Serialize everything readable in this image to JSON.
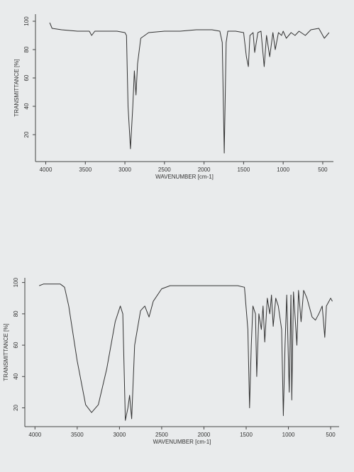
{
  "chart_data": [
    {
      "type": "line",
      "ylabel": "TRANSMITTANCE [%]",
      "xlabel": "WAVENUMBER [cm-1]",
      "xlim": [
        4130,
        365
      ],
      "ylim": [
        1,
        105
      ],
      "xticks": [
        4000,
        3500,
        3000,
        2500,
        2000,
        1500,
        1000,
        500
      ],
      "yticks": [
        20,
        40,
        60,
        80,
        100
      ],
      "color": "#333333",
      "x": [
        3950,
        3920,
        3800,
        3600,
        3450,
        3420,
        3380,
        3100,
        3000,
        2980,
        2960,
        2930,
        2900,
        2880,
        2860,
        2840,
        2800,
        2700,
        2500,
        2300,
        2100,
        1900,
        1800,
        1770,
        1745,
        1720,
        1700,
        1600,
        1500,
        1465,
        1440,
        1420,
        1380,
        1360,
        1320,
        1280,
        1240,
        1210,
        1170,
        1130,
        1100,
        1060,
        1020,
        1000,
        960,
        900,
        850,
        800,
        720,
        650,
        550,
        480,
        420
      ],
      "values": [
        99,
        95,
        94,
        93,
        93,
        90,
        93,
        93,
        92,
        90,
        40,
        10,
        40,
        65,
        48,
        70,
        88,
        92,
        93,
        93,
        94,
        94,
        93,
        85,
        7,
        85,
        93,
        93,
        92,
        75,
        68,
        90,
        92,
        78,
        92,
        93,
        68,
        90,
        75,
        92,
        80,
        92,
        90,
        93,
        88,
        92,
        90,
        93,
        90,
        94,
        95,
        88,
        92
      ]
    },
    {
      "type": "line",
      "ylabel": "TRANSMITTANCE [%]",
      "xlabel": "WAVENUMBER [cm-1]",
      "xlim": [
        4120,
        400
      ],
      "ylim": [
        8,
        103
      ],
      "xticks": [
        4000,
        3500,
        3000,
        2500,
        2000,
        1500,
        1000,
        500
      ],
      "yticks": [
        20,
        40,
        60,
        80,
        100
      ],
      "color": "#333333",
      "x": [
        3950,
        3900,
        3700,
        3650,
        3600,
        3500,
        3400,
        3330,
        3250,
        3150,
        3050,
        2990,
        2960,
        2930,
        2900,
        2880,
        2855,
        2820,
        2750,
        2700,
        2650,
        2600,
        2500,
        2400,
        2200,
        2000,
        1800,
        1600,
        1520,
        1480,
        1460,
        1440,
        1420,
        1390,
        1375,
        1350,
        1320,
        1300,
        1280,
        1250,
        1220,
        1200,
        1180,
        1150,
        1120,
        1080,
        1060,
        1040,
        1020,
        990,
        970,
        960,
        940,
        900,
        880,
        850,
        820,
        780,
        720,
        680,
        640,
        600,
        570,
        550,
        500,
        480
      ],
      "values": [
        98,
        99,
        99,
        97,
        85,
        50,
        22,
        17,
        22,
        45,
        75,
        85,
        80,
        12,
        20,
        28,
        13,
        60,
        82,
        85,
        78,
        88,
        96,
        98,
        98,
        98,
        98,
        98,
        97,
        70,
        20,
        60,
        85,
        80,
        40,
        80,
        70,
        85,
        62,
        90,
        80,
        92,
        72,
        90,
        85,
        70,
        15,
        60,
        92,
        30,
        92,
        25,
        94,
        60,
        95,
        75,
        95,
        90,
        78,
        76,
        80,
        85,
        65,
        85,
        90,
        88
      ]
    }
  ]
}
